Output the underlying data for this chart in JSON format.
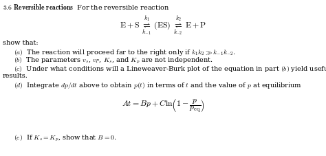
{
  "bg_color": "#ffffff",
  "figsize": [
    4.74,
    2.28
  ],
  "dpi": 100,
  "text_color": "#000000",
  "fs_base": 7.0,
  "fs_reaction": 7.5,
  "fs_formula": 8.5
}
